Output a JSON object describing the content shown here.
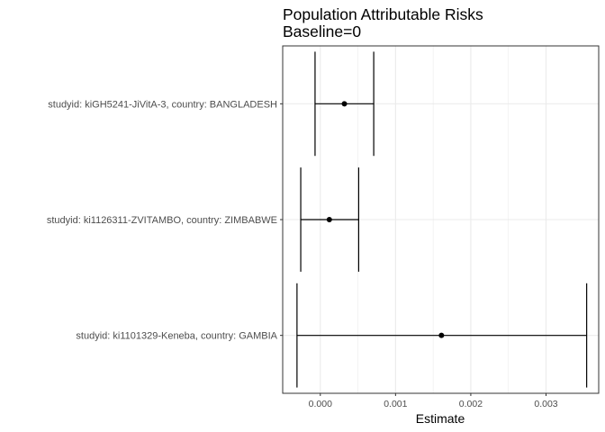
{
  "chart_data": {
    "type": "errorbar",
    "title": "Population Attributable Risks",
    "subtitle": "Baseline=0",
    "xlabel": "Estimate",
    "ylabel": "",
    "xlim": [
      -0.0005,
      0.0037
    ],
    "x_ticks": [
      0.0,
      0.001,
      0.002,
      0.003
    ],
    "x_tick_labels": [
      "0.000",
      "0.001",
      "0.002",
      "0.003"
    ],
    "grid": true,
    "categories": [
      "studyid: kiGH5241-JiVitA-3, country: BANGLADESH",
      "studyid: ki1126311-ZVITAMBO, country: ZIMBABWE",
      "studyid: ki1101329-Keneba, country: GAMBIA"
    ],
    "estimates": [
      0.00032,
      0.00012,
      0.00161
    ],
    "ci_lower": [
      -7e-05,
      -0.00026,
      -0.00031
    ],
    "ci_upper": [
      0.00071,
      0.00051,
      0.00354
    ],
    "colors": {
      "mark": "#000000",
      "grid": "#ebebeb",
      "panel_border": "#333333",
      "tick_text": "#4d4d4d"
    }
  }
}
